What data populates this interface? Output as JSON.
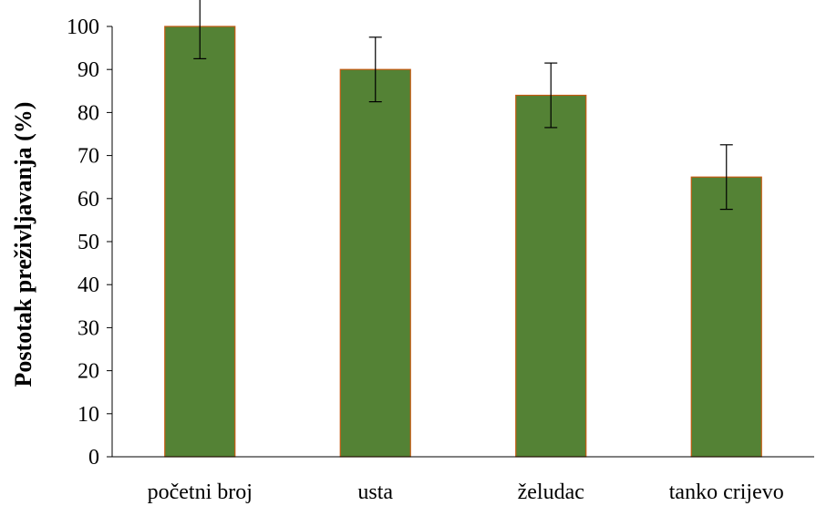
{
  "chart_data": {
    "type": "bar",
    "title": "",
    "xlabel": "",
    "ylabel": "Postotak preživljavanja (%)",
    "ylim": [
      0,
      100
    ],
    "yticks": [
      0,
      10,
      20,
      30,
      40,
      50,
      60,
      70,
      80,
      90,
      100
    ],
    "grid": false,
    "categories": [
      "početni broj",
      "usta",
      "želudac",
      "tanko crijevo"
    ],
    "values": [
      100,
      90,
      84,
      65
    ],
    "errors": [
      7.5,
      7.5,
      7.5,
      7.5
    ],
    "colors": {
      "bar_fill": "#548235",
      "bar_edge": "#c55a11",
      "axis": "#000000"
    }
  }
}
